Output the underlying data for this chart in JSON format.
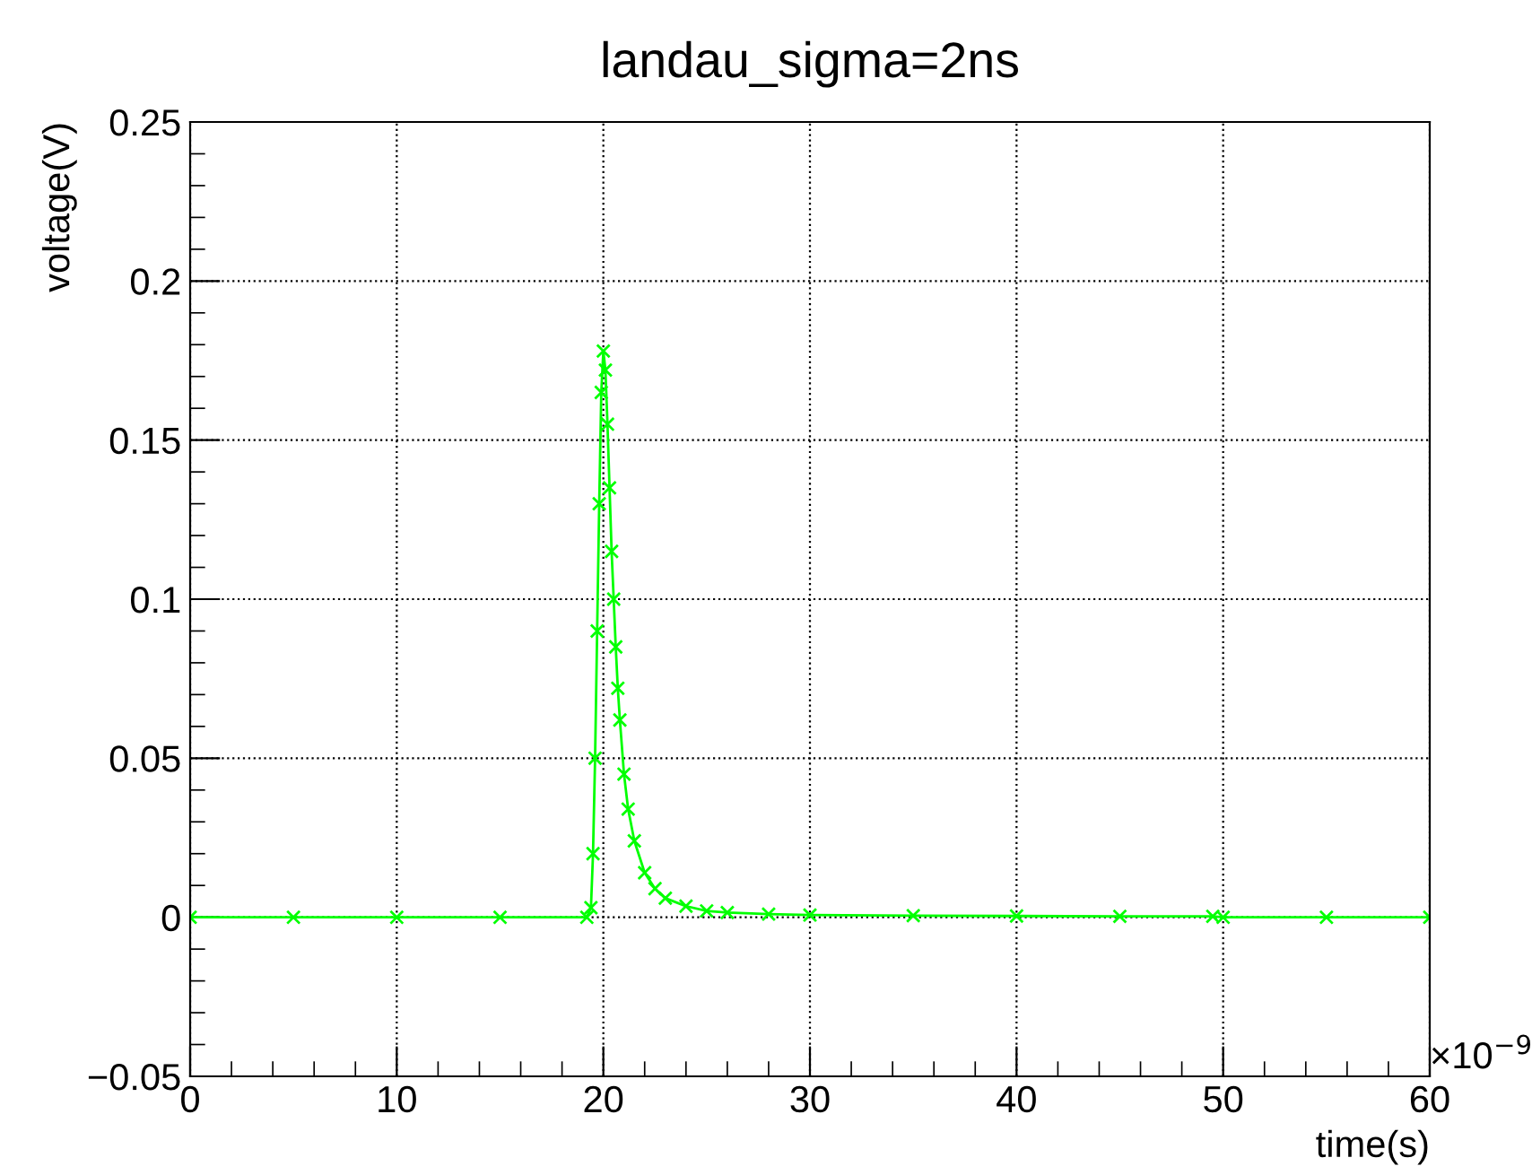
{
  "chart_data": {
    "type": "line",
    "title": "landau_sigma=2ns",
    "xlabel": "time(s)",
    "ylabel": "voltage(V)",
    "annotations": [
      "×10$^{−9}$"
    ],
    "series": [
      {
        "color": "#00ff00",
        "x": [
          0,
          5,
          10,
          15,
          19.2,
          19.4,
          19.5,
          19.6,
          19.7,
          19.8,
          19.9,
          20.0,
          20.1,
          20.2,
          20.3,
          20.4,
          20.5,
          20.6,
          20.7,
          20.8,
          21.0,
          21.2,
          21.5,
          22,
          22.5,
          23,
          24,
          25,
          26,
          28,
          30,
          35,
          40,
          45,
          49.5,
          50,
          55,
          60
        ],
        "values": [
          0,
          0,
          0,
          0,
          0,
          0.003,
          0.02,
          0.05,
          0.09,
          0.13,
          0.165,
          0.178,
          0.172,
          0.155,
          0.135,
          0.115,
          0.1,
          0.085,
          0.072,
          0.062,
          0.045,
          0.034,
          0.024,
          0.014,
          0.009,
          0.006,
          0.0035,
          0.002,
          0.0015,
          0.001,
          0.0007,
          0.0005,
          0.0004,
          0.0003,
          0.0003,
          0,
          0,
          0
        ]
      }
    ],
    "marker": "cross",
    "line_style": "solid",
    "grid": true,
    "xlim": [
      0,
      60
    ],
    "xticks": [
      0,
      10,
      20,
      30,
      40,
      50,
      60
    ],
    "ylim": [
      -0.05,
      0.25
    ],
    "yticks": [
      {
        "value": -0.05,
        "label": "−0.05"
      },
      0,
      0.05,
      0.1,
      0.15,
      0.2,
      0.25
    ]
  }
}
